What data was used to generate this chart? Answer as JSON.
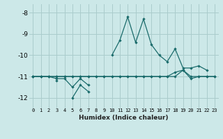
{
  "title": "",
  "xlabel": "Humidex (Indice chaleur)",
  "bg_color": "#cce8e8",
  "grid_color": "#aacccc",
  "line_color": "#1a6b6b",
  "xlim": [
    -0.5,
    23.5
  ],
  "ylim": [
    -12.5,
    -7.6
  ],
  "yticks": [
    -12,
    -11,
    -10,
    -9,
    -8
  ],
  "xticks": [
    0,
    1,
    2,
    3,
    4,
    5,
    6,
    7,
    8,
    9,
    10,
    11,
    12,
    13,
    14,
    15,
    16,
    17,
    18,
    19,
    20,
    21,
    22,
    23
  ],
  "series": [
    [
      null,
      null,
      null,
      null,
      null,
      null,
      null,
      null,
      null,
      null,
      -10.0,
      -9.3,
      -8.2,
      -9.4,
      -8.3,
      -9.5,
      -10.0,
      -10.3,
      -9.7,
      -10.6,
      -10.6,
      -10.5,
      -10.7,
      null
    ],
    [
      -11.0,
      -11.0,
      -11.0,
      -11.1,
      -11.1,
      -11.5,
      -11.1,
      -11.4,
      null,
      null,
      null,
      null,
      null,
      null,
      null,
      null,
      null,
      null,
      null,
      null,
      null,
      null,
      null,
      null
    ],
    [
      -11.0,
      null,
      null,
      -11.2,
      null,
      -12.0,
      -11.4,
      -11.7,
      null,
      null,
      null,
      null,
      null,
      null,
      null,
      null,
      null,
      null,
      null,
      null,
      null,
      null,
      null,
      null
    ],
    [
      -11.0,
      -11.0,
      -11.0,
      -11.0,
      -11.0,
      -11.0,
      -11.0,
      -11.0,
      -11.0,
      -11.0,
      -11.0,
      -11.0,
      -11.0,
      -11.0,
      -11.0,
      -11.0,
      -11.0,
      -11.0,
      -10.8,
      -10.7,
      -11.1,
      -11.0,
      -11.0,
      -11.0
    ],
    [
      -11.0,
      -11.0,
      -11.0,
      -11.0,
      -11.0,
      -11.0,
      -11.0,
      -11.0,
      -11.0,
      -11.0,
      -11.0,
      -11.0,
      -11.0,
      -11.0,
      -11.0,
      -11.0,
      -11.0,
      -11.0,
      -11.0,
      -10.7,
      -11.0,
      -11.0,
      -11.0,
      -11.0
    ]
  ]
}
